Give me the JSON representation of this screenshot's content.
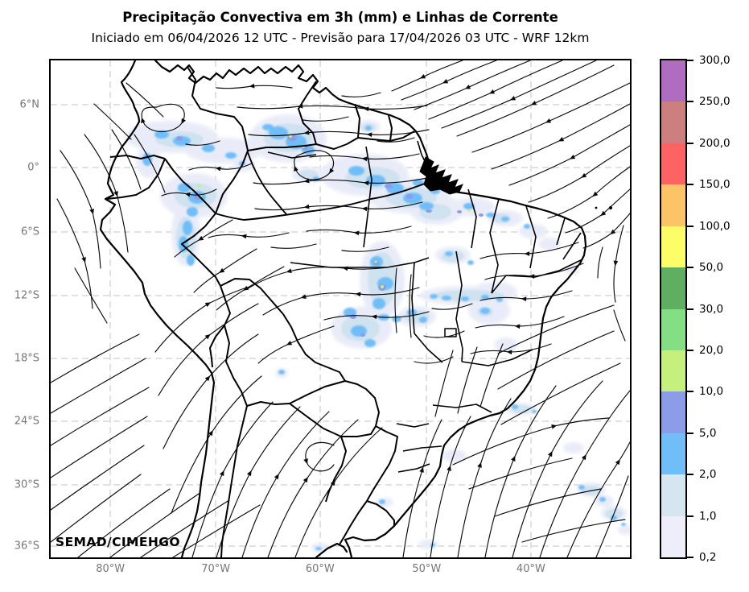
{
  "header": {
    "title": "Precipitação Convectiva em 3h (mm) e Linhas de Corrente",
    "subtitle": "Iniciado em 06/04/2026 12 UTC - Previsão para 17/04/2026 03 UTC - WRF 12km"
  },
  "map": {
    "watermark": "SEMAD/CIMEHGO",
    "y_axis": {
      "ticks": [
        {
          "label": "6°N",
          "pct": 8.9
        },
        {
          "label": "0°",
          "pct": 21.6
        },
        {
          "label": "6°S",
          "pct": 34.5
        },
        {
          "label": "12°S",
          "pct": 47.3
        },
        {
          "label": "18°S",
          "pct": 60.0
        },
        {
          "label": "24°S",
          "pct": 72.6
        },
        {
          "label": "30°S",
          "pct": 85.4
        },
        {
          "label": "36°S",
          "pct": 97.7
        }
      ]
    },
    "x_axis": {
      "ticks": [
        {
          "label": "80°W",
          "pct": 10.3
        },
        {
          "label": "70°W",
          "pct": 28.5
        },
        {
          "label": "60°W",
          "pct": 46.5
        },
        {
          "label": "50°W",
          "pct": 64.9
        },
        {
          "label": "40°W",
          "pct": 82.9
        }
      ]
    }
  },
  "colorbar": {
    "levels_bottom_to_top": [
      "0,2",
      "1,0",
      "2,0",
      "5,0",
      "10,0",
      "20,0",
      "30,0",
      "50,0",
      "100,0",
      "150,0",
      "200,0",
      "250,0",
      "300,0"
    ],
    "colors_bottom_to_top": [
      "#edeefa",
      "#d6e6f0",
      "#70bdf8",
      "#8c9ce8",
      "#c6f07d",
      "#84de84",
      "#5fae62",
      "#fdfd67",
      "#fdc367",
      "#fd6363",
      "#cd7f7f",
      "#b06cc0"
    ]
  },
  "chart_data": {
    "type": "heatmap",
    "title": "Precipitação Convectiva em 3h (mm) e Linhas de Corrente",
    "subtitle": "Iniciado em 06/04/2026 12 UTC - Previsão para 17/04/2026 03 UTC - WRF 12km",
    "model": "WRF 12km",
    "overlay": "black streamlines with arrowheads (linhas de corrente)",
    "x_ticks_lon": [
      "80°W",
      "70°W",
      "60°W",
      "50°W",
      "40°W"
    ],
    "y_ticks_lat": [
      "6°N",
      "0°",
      "6°S",
      "12°S",
      "18°S",
      "24°S",
      "30°S",
      "36°S"
    ],
    "extent": {
      "lon_west": "~86°W",
      "lon_east": "~31°W",
      "lat_north": "~10°N",
      "lat_south": "~37°S"
    },
    "grid": "dashed light-gray lat/lon grid",
    "legend_position": "vertical colorbar, right side",
    "colorbar_levels_mm": [
      0.2,
      1,
      2,
      5,
      10,
      20,
      30,
      50,
      100,
      150,
      200,
      250,
      300
    ],
    "colorbar_colors": [
      "#edeefa",
      "#d6e6f0",
      "#70bdf8",
      "#8c9ce8",
      "#c6f07d",
      "#84de84",
      "#5fae62",
      "#fdfd67",
      "#fdc367",
      "#fd6363",
      "#cd7f7f",
      "#b06cc0"
    ],
    "precipitation_regions": [
      {
        "area": "Colombia–Venezuela border band (~5°N, 72–78°W)",
        "intensity_mm": "2–10"
      },
      {
        "area": "Upper Rio Negro / NW Amazonas (~0–1°S, 62–66°W)",
        "intensity_mm": "5–20"
      },
      {
        "area": "Western Amazonas / Peru border (~2–8°S, 70–73°W)",
        "intensity_mm": "5–20"
      },
      {
        "area": "Central Amazonas to Amazon mouth band (0–3°S, 49–60°W)",
        "intensity_mm": "2–10"
      },
      {
        "area": "Pará coast near Belém / São Luís (1–4°S, 43–50°W)",
        "intensity_mm": "2–5"
      },
      {
        "area": "Tocantins / S Pará N–S cluster (7–14°S, 53–56°W)",
        "intensity_mm": "5–20"
      },
      {
        "area": "12°S band over Goiás / W Bahia (48–54°W)",
        "intensity_mm": "1–5"
      },
      {
        "area": "SE Atlantic offshore (28–33°S, 33–38°W)",
        "intensity_mm": "1–5"
      },
      {
        "area": "scattered very light cells elsewhere",
        "intensity_mm": "0.2–1"
      }
    ],
    "streamline_features": [
      "NE trade winds over the tropical Atlantic turning westward at the NE Brazilian coast",
      "westward equatorial flow along the Amazon",
      "northerly low-level jet east of the Andes over Bolivia/Paraguay",
      "fan-shaped outflow of the South Atlantic subtropical high over the SE ocean",
      "southward coastal flow off Ecuador/Peru"
    ]
  }
}
